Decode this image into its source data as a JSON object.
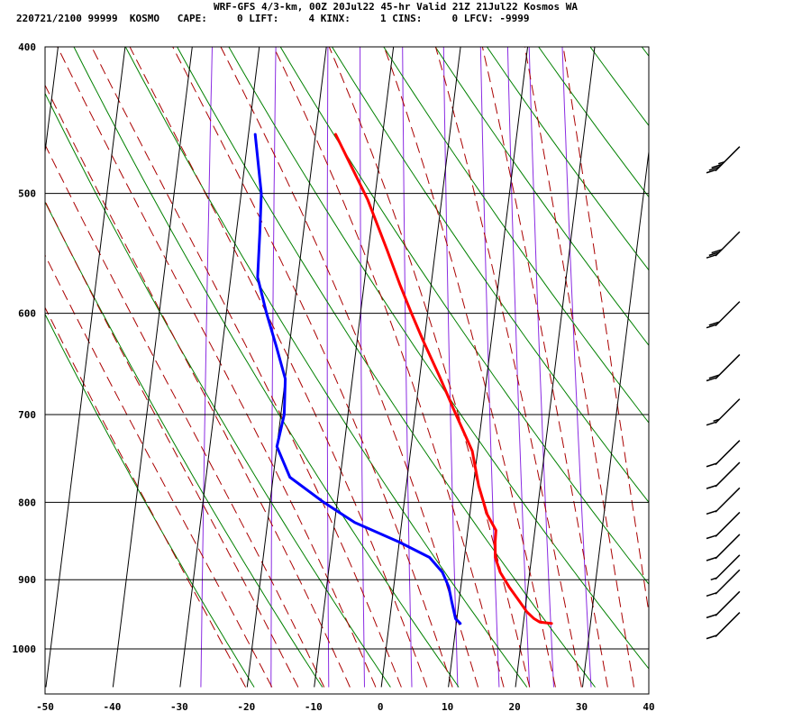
{
  "header": {
    "line1": "WRF-GFS 4/3-km, 00Z 20Jul22 45-hr Valid 21Z 21Jul22 Kosmos WA",
    "line2": "220721/2100 99999  KOSMO   CAPE:     0 LIFT:     4 KINX:     1 CINS:     0 LFCV: -9999"
  },
  "chart_data": {
    "type": "line",
    "diagram": "skew-t log-p",
    "x_ticks": [
      -50,
      -40,
      -30,
      -20,
      -10,
      0,
      10,
      20,
      30,
      40
    ],
    "x_tick_labels": [
      "-50",
      "-40",
      "-30",
      "-20",
      "-10",
      "0",
      "10",
      "20",
      "30",
      "40"
    ],
    "p_ticks": [
      400,
      500,
      600,
      700,
      800,
      900,
      1000
    ],
    "p_tick_labels": [
      "400",
      "500",
      "600",
      "700",
      "800",
      "900",
      "1000"
    ],
    "xlim": [
      -50,
      40
    ],
    "ylim_pressure": [
      1040,
      400
    ],
    "y_scale": "log",
    "grid": true,
    "series": [
      {
        "color": "#ff0000",
        "pressure": [
          457,
          505,
          545,
          575,
          600,
          625,
          660,
          700,
          740,
          780,
          815,
          835,
          850,
          870,
          890,
          910,
          930,
          945,
          955,
          960,
          962
        ],
        "values": [
          -17,
          -11,
          -7.2,
          -4.6,
          -2.4,
          -0.2,
          2.9,
          6.1,
          9.2,
          10.8,
          12.6,
          14.2,
          14.3,
          14.6,
          15.6,
          17.2,
          19.0,
          20.3,
          21.5,
          22.4,
          24.2
        ]
      },
      {
        "color": "#0000ff",
        "pressure": [
          457,
          500,
          530,
          568,
          600,
          630,
          663,
          700,
          735,
          770,
          800,
          825,
          850,
          870,
          890,
          910,
          930,
          955,
          962
        ],
        "values": [
          -29,
          -27,
          -26.5,
          -26,
          -24,
          -22,
          -20,
          -19.5,
          -20,
          -17.5,
          -12,
          -7,
          0,
          4.8,
          7,
          8.2,
          8.9,
          9.8,
          10.6
        ]
      }
    ],
    "wind_barbs": [
      {
        "pressure": 470,
        "knots": 35
      },
      {
        "pressure": 535,
        "knots": 30
      },
      {
        "pressure": 595,
        "knots": 20
      },
      {
        "pressure": 645,
        "knots": 20
      },
      {
        "pressure": 690,
        "knots": 15
      },
      {
        "pressure": 735,
        "knots": 10
      },
      {
        "pressure": 760,
        "knots": 10
      },
      {
        "pressure": 790,
        "knots": 10
      },
      {
        "pressure": 820,
        "knots": 10
      },
      {
        "pressure": 848,
        "knots": 10
      },
      {
        "pressure": 875,
        "knots": 5
      },
      {
        "pressure": 895,
        "knots": 10
      },
      {
        "pressure": 925,
        "knots": 10
      },
      {
        "pressure": 955,
        "knots": 10
      }
    ],
    "colors": {
      "isotherm": "#000000",
      "isobar": "#000000",
      "dry_adiabat": "#008000",
      "moist_adiabat": "#aa0000",
      "mixing_ratio": "#8a2be2",
      "temperature": "#ff0000",
      "dewpoint": "#0000ff",
      "wind_barb": "#000000"
    }
  }
}
